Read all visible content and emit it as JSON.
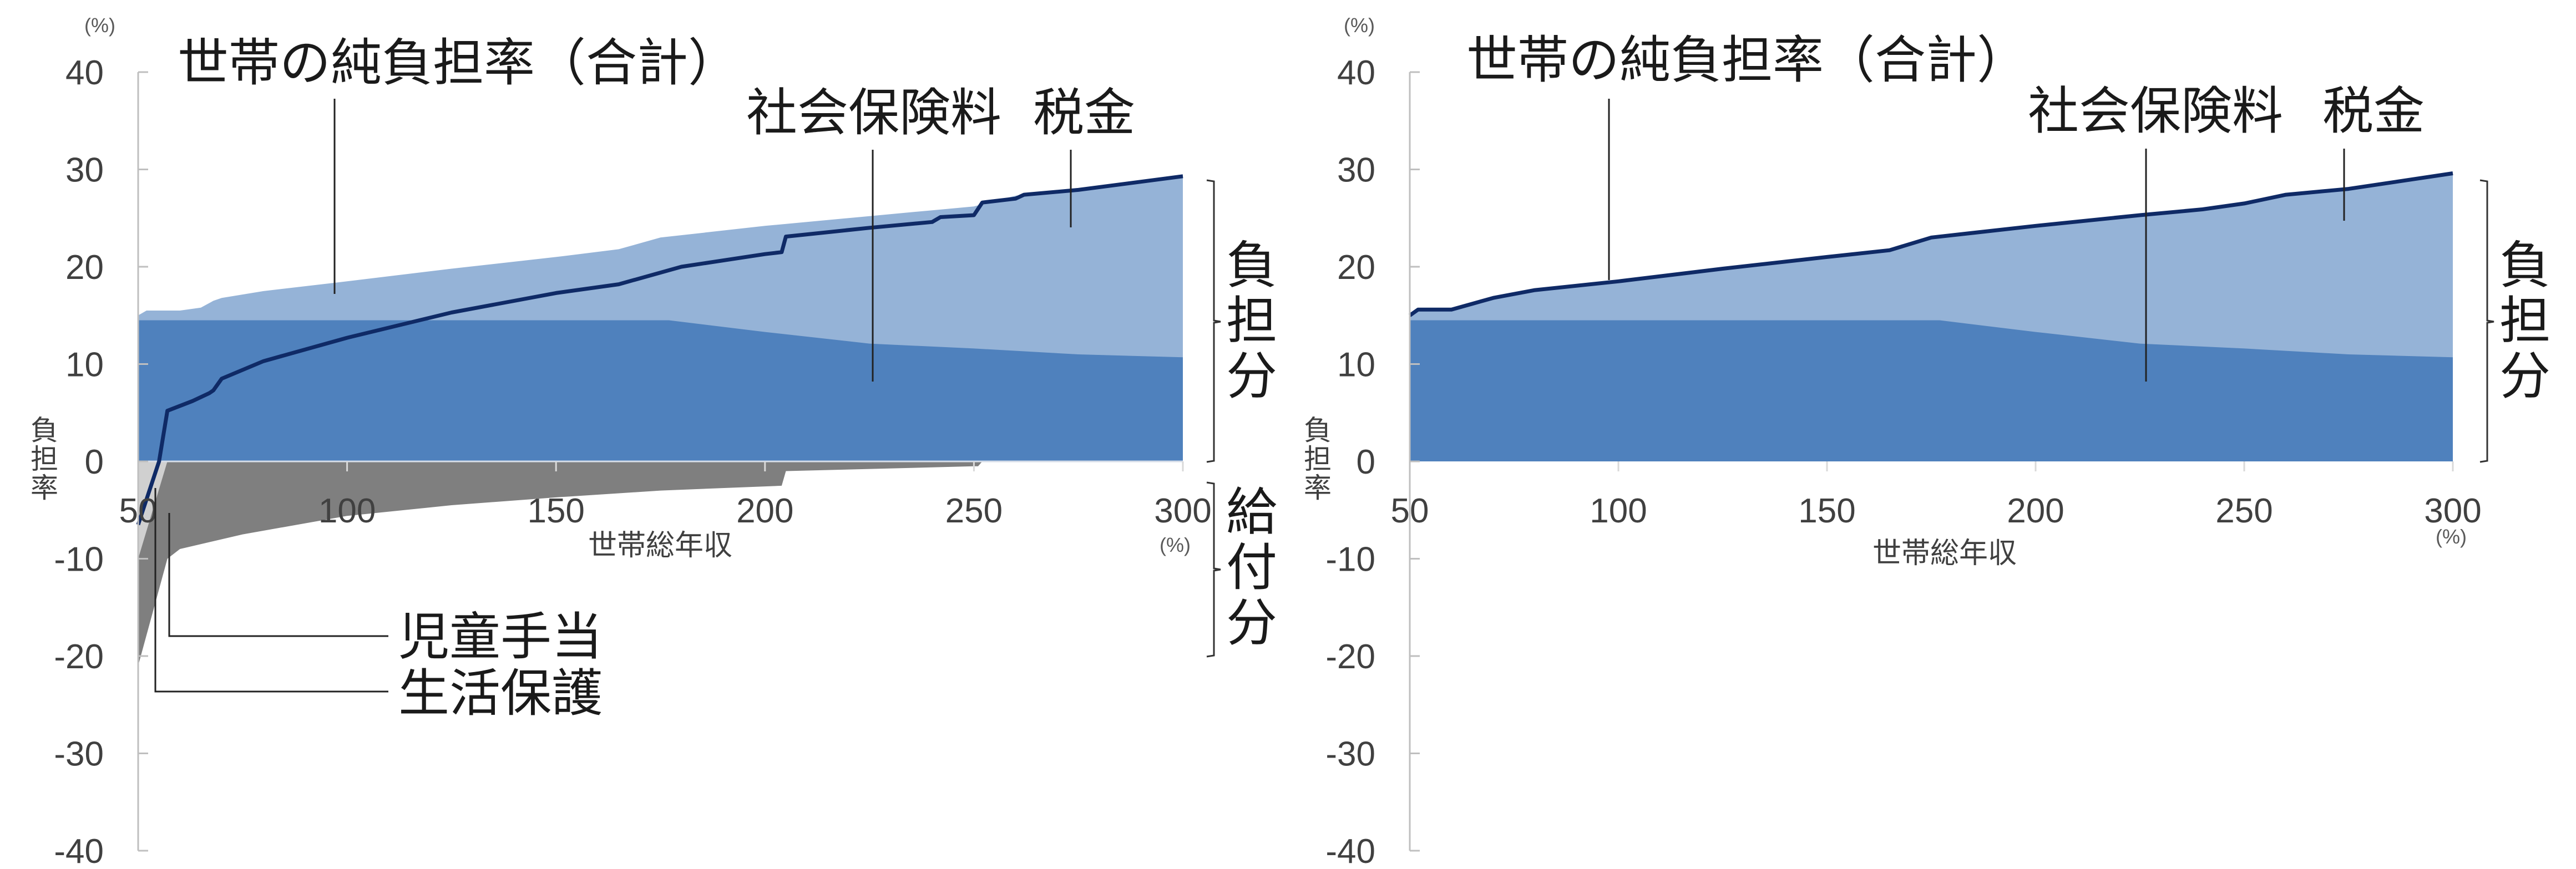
{
  "colors": {
    "social_insurance": "#4F81BD",
    "tax": "#95B3D7",
    "net_line": "#0F2A66",
    "child_allowance": "#7F7F7F",
    "welfare": "#D0D0D0",
    "axis": "#BFBFBF"
  },
  "labels": {
    "y_unit": "(%)",
    "x_unit": "(%)",
    "x_axis_title": "世帯総年収",
    "y_axis_title_chars": [
      "負",
      "担",
      "率"
    ],
    "net_burden": "世帯の純負担率（合計）",
    "social_insurance": "社会保険料",
    "tax": "税金",
    "child_allowance": "児童手当",
    "welfare": "生活保護",
    "burden_bracket_chars": [
      "負",
      "担",
      "分"
    ],
    "benefit_bracket_chars": [
      "給",
      "付",
      "分"
    ]
  },
  "axes": {
    "y_ticks": [
      "40",
      "30",
      "20",
      "10",
      "0",
      "-10",
      "-20",
      "-30",
      "-40"
    ],
    "x_ticks": [
      "50",
      "100",
      "150",
      "200",
      "250",
      "300"
    ]
  },
  "chart_data": [
    {
      "type": "area",
      "title": "",
      "xlabel": "世帯総年収 (%)",
      "ylabel": "負担率 (%)",
      "xlim": [
        50,
        300
      ],
      "ylim": [
        -40,
        40
      ],
      "grid": false,
      "annotations": [
        "世帯の純負担率（合計）",
        "社会保険料",
        "税金",
        "児童手当",
        "生活保護",
        "負担分",
        "給付分"
      ],
      "series": [
        {
          "name": "社会保険料",
          "kind": "area",
          "x": [
            50,
            100,
            150,
            177,
            200,
            225,
            250,
            275,
            300
          ],
          "values": [
            14.5,
            14.5,
            14.5,
            14.5,
            13.3,
            12.1,
            11.6,
            11.0,
            10.7
          ]
        },
        {
          "name": "税金（累積上端）",
          "kind": "area",
          "x": [
            50,
            52,
            60,
            65,
            68,
            70,
            80,
            100,
            125,
            150,
            165,
            175,
            200,
            225,
            240,
            250,
            260,
            275,
            300
          ],
          "values": [
            15.0,
            15.5,
            15.5,
            15.8,
            16.5,
            16.8,
            17.5,
            18.5,
            19.8,
            21.0,
            21.8,
            23.0,
            24.2,
            25.2,
            25.8,
            26.2,
            27.3,
            28.0,
            29.5
          ]
        },
        {
          "name": "児童手当",
          "kind": "area",
          "x": [
            50,
            57,
            60,
            75,
            100,
            125,
            150,
            175,
            204,
            205,
            250,
            251,
            252
          ],
          "values": [
            -21.0,
            -10.0,
            -9.0,
            -7.5,
            -5.6,
            -4.5,
            -3.7,
            -3.0,
            -2.5,
            -1.0,
            -0.5,
            -0.5,
            0
          ]
        },
        {
          "name": "生活保護",
          "kind": "area",
          "x": [
            50,
            57
          ],
          "values": [
            -10.0,
            0
          ]
        },
        {
          "name": "世帯の純負担率（合計）",
          "kind": "line",
          "x": [
            50,
            55,
            57,
            63,
            67,
            68,
            70,
            80,
            100,
            125,
            150,
            165,
            180,
            200,
            204,
            205,
            225,
            240,
            242,
            250,
            252,
            260,
            262,
            275,
            300
          ],
          "values": [
            -6.5,
            0,
            5.2,
            6.2,
            7.0,
            7.3,
            8.5,
            10.3,
            12.7,
            15.3,
            17.3,
            18.2,
            20.0,
            21.3,
            21.5,
            23.1,
            24.0,
            24.6,
            25.1,
            25.3,
            26.6,
            27.0,
            27.4,
            27.9,
            29.3
          ]
        }
      ]
    },
    {
      "type": "area",
      "title": "",
      "xlabel": "世帯総年収 (%)",
      "ylabel": "負担率 (%)",
      "xlim": [
        50,
        300
      ],
      "ylim": [
        -40,
        40
      ],
      "grid": false,
      "annotations": [
        "世帯の純負担率（合計）",
        "社会保険料",
        "税金",
        "負担分"
      ],
      "series": [
        {
          "name": "社会保険料",
          "kind": "area",
          "x": [
            50,
            100,
            150,
            177,
            200,
            225,
            250,
            275,
            300
          ],
          "values": [
            14.5,
            14.5,
            14.5,
            14.5,
            13.3,
            12.1,
            11.6,
            11.0,
            10.7
          ]
        },
        {
          "name": "税金（累積上端）",
          "kind": "area",
          "x": [
            50,
            52,
            60,
            65,
            70,
            80,
            100,
            125,
            150,
            165,
            175,
            200,
            225,
            240,
            250,
            260,
            275,
            300
          ],
          "values": [
            15.0,
            15.6,
            15.6,
            16.2,
            16.8,
            17.6,
            18.5,
            19.8,
            21.0,
            21.7,
            23.0,
            24.2,
            25.3,
            25.9,
            26.5,
            27.4,
            28.0,
            29.6
          ]
        },
        {
          "name": "世帯の純負担率（合計）",
          "kind": "line",
          "x": [
            50,
            52,
            60,
            65,
            70,
            80,
            100,
            125,
            150,
            165,
            175,
            200,
            225,
            240,
            250,
            260,
            275,
            300
          ],
          "values": [
            15.0,
            15.6,
            15.6,
            16.2,
            16.8,
            17.6,
            18.5,
            19.8,
            21.0,
            21.7,
            23.0,
            24.2,
            25.3,
            25.9,
            26.5,
            27.4,
            28.0,
            29.6
          ]
        }
      ]
    }
  ]
}
